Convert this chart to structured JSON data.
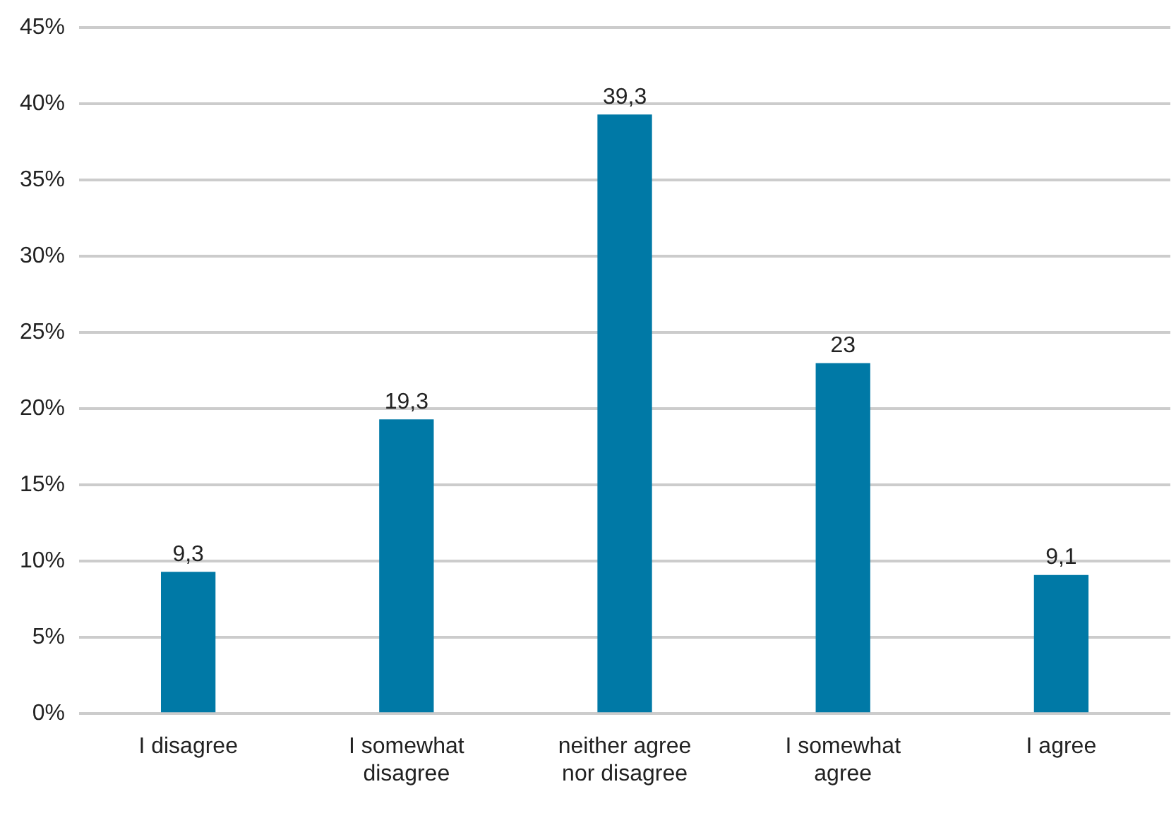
{
  "chart_data": {
    "type": "bar",
    "categories": [
      "I disagree",
      "I somewhat disagree",
      "neither agree nor disagree",
      "I somewhat agree",
      "I agree"
    ],
    "values": [
      9.3,
      19.3,
      39.3,
      23,
      9.1
    ],
    "value_labels": [
      "9,3",
      "19,3",
      "39,3",
      "23",
      "9,1"
    ],
    "color": "#0079a6",
    "ylim": [
      0,
      45
    ],
    "yticks": [
      {
        "value": 0,
        "label": "0%"
      },
      {
        "value": 5,
        "label": "5%"
      },
      {
        "value": 10,
        "label": "10%"
      },
      {
        "value": 15,
        "label": "15%"
      },
      {
        "value": 20,
        "label": "20%"
      },
      {
        "value": 25,
        "label": "25%"
      },
      {
        "value": 30,
        "label": "30%"
      },
      {
        "value": 35,
        "label": "35%"
      },
      {
        "value": 40,
        "label": "40%"
      },
      {
        "value": 45,
        "label": "45%"
      }
    ],
    "grid": "y",
    "legend": false
  }
}
